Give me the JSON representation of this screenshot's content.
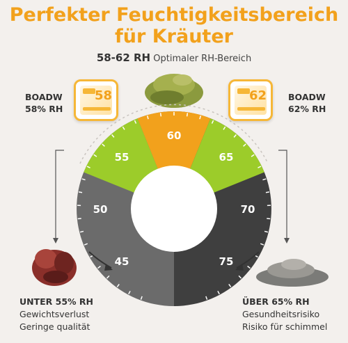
{
  "title": {
    "line1": "Perfekter Feuchtigkeitsbereich",
    "line2": "für Kräuter"
  },
  "subtitle": {
    "range": "58-62 RH",
    "text": "Optimaler RH-Bereich"
  },
  "left_pack": {
    "brand": "BOADW",
    "rh": "58% RH",
    "badge": "58"
  },
  "right_pack": {
    "brand": "BOADW",
    "rh": "62% RH",
    "badge": "62"
  },
  "gauge": {
    "ticks": [
      "45",
      "50",
      "55",
      "60",
      "65",
      "70",
      "75"
    ],
    "colors": {
      "dark": "#3f3f3f",
      "mid": "#6b6b6b",
      "green": "#9ccc2a",
      "orange": "#f2a11c"
    }
  },
  "left_bottom": {
    "heading": "UNTER 55% RH",
    "line1": "Gewichtsverlust",
    "line2": "Geringe qualität"
  },
  "right_bottom": {
    "heading": "ÜBER 65% RH",
    "line1": "Gesundheitsrisiko",
    "line2": "Risiko für schimmel"
  }
}
